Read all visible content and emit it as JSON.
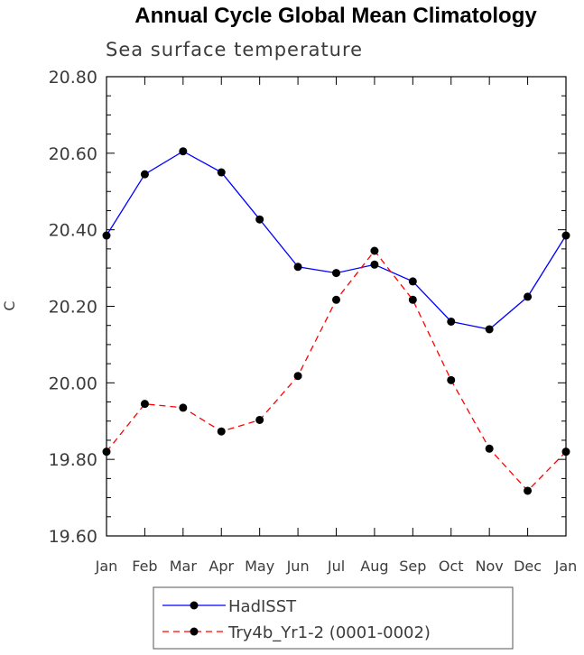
{
  "chart_data": {
    "type": "line",
    "title": "Annual Cycle Global Mean Climatology",
    "subtitle": "Sea surface temperature",
    "xlabel": "",
    "ylabel": "C",
    "ylim": [
      19.6,
      20.8
    ],
    "yticks": [
      "19.60",
      "19.80",
      "20.00",
      "20.20",
      "20.40",
      "20.60",
      "20.80"
    ],
    "categories": [
      "Jan",
      "Feb",
      "Mar",
      "Apr",
      "May",
      "Jun",
      "Jul",
      "Aug",
      "Sep",
      "Oct",
      "Nov",
      "Dec",
      "Jan"
    ],
    "series": [
      {
        "name": "HadISST",
        "color": "#0000ff",
        "dash": "solid",
        "values": [
          20.385,
          20.545,
          20.605,
          20.55,
          20.427,
          20.303,
          20.287,
          20.309,
          20.265,
          20.16,
          20.14,
          20.225,
          20.385
        ]
      },
      {
        "name": "Try4b_Yr1-2 (0001-0002)",
        "color": "#ff0000",
        "dash": "dashed",
        "values": [
          19.82,
          19.945,
          19.935,
          19.873,
          19.903,
          20.018,
          20.217,
          20.345,
          20.217,
          20.007,
          19.828,
          19.718,
          19.82
        ]
      }
    ]
  }
}
